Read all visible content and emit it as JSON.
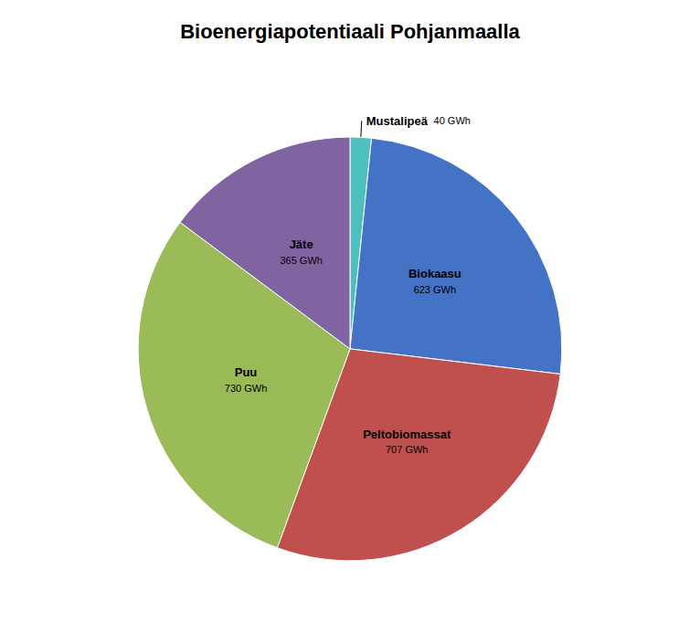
{
  "chart_data": {
    "type": "pie",
    "title": "Bioenergiapotentiaali Pohjanmaalla",
    "categories": [
      "Mustalipeä",
      "Biokaasu",
      "Peltobiomassat",
      "Puu",
      "Jäte"
    ],
    "values": [
      40,
      623,
      707,
      730,
      365
    ],
    "value_labels": [
      "40 GWh",
      "623 GWh",
      "707 GWh",
      "730 GWh",
      "365 GWh"
    ],
    "colors": [
      "#4DBFBF",
      "#4472C4",
      "#C0504D",
      "#9BBB59",
      "#8064A2"
    ]
  }
}
